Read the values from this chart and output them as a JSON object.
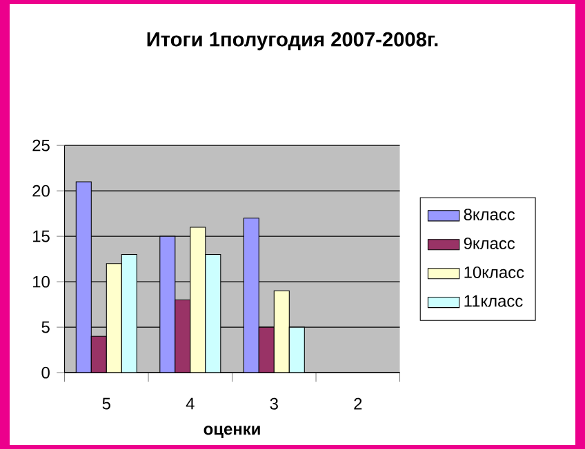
{
  "chart_data": {
    "type": "bar",
    "title": "Итоги 1полугодия 2007-2008г.",
    "xlabel": "оценки",
    "categories": [
      "5",
      "4",
      "3",
      "2"
    ],
    "series": [
      {
        "name": "8класс",
        "color": "#9999ff",
        "values": [
          21,
          15,
          17,
          null
        ]
      },
      {
        "name": "9класс",
        "color": "#993366",
        "values": [
          4,
          8,
          5,
          null
        ]
      },
      {
        "name": "10класс",
        "color": "#ffffcc",
        "values": [
          12,
          16,
          9,
          null
        ]
      },
      {
        "name": "11класс",
        "color": "#ccffff",
        "values": [
          13,
          13,
          5,
          null
        ]
      }
    ],
    "ylim": [
      0,
      25
    ],
    "yticks": [
      0,
      5,
      10,
      15,
      20,
      25
    ],
    "grid": "y",
    "legend": "right"
  }
}
